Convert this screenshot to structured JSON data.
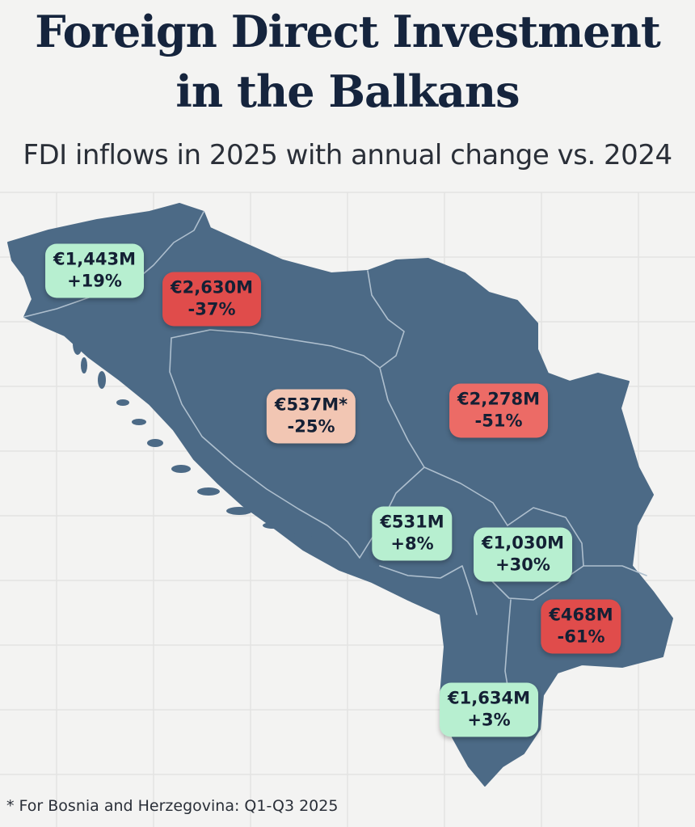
{
  "title": {
    "line1": "Foreign Direct Investment",
    "line2": "in the Balkans"
  },
  "subtitle": "FDI inflows in 2025 with annual change vs. 2024",
  "footnote": "* For Bosnia and Herzegovina: Q1-Q3 2025",
  "colors": {
    "background": "#f3f3f2",
    "map_fill": "#4c6a86",
    "border": "#aebfce",
    "positive": "#b7efd0",
    "mild_negative": "#f2c6b3",
    "negative": "#ec6b66",
    "strong_negative": "#e04c4b",
    "text": "#142034"
  },
  "regions": [
    {
      "id": "slovenia",
      "value": "€1,443M",
      "change": "+19%",
      "trend": "positive"
    },
    {
      "id": "croatia",
      "value": "€2,630M",
      "change": "-37%",
      "trend": "strong_negative"
    },
    {
      "id": "bosnia",
      "value": "€537M*",
      "change": "-25%",
      "trend": "mild_negative"
    },
    {
      "id": "serbia",
      "value": "€2,278M",
      "change": "-51%",
      "trend": "negative"
    },
    {
      "id": "montenegro",
      "value": "€531M",
      "change": "+8%",
      "trend": "positive"
    },
    {
      "id": "kosovo",
      "value": "€1,030M",
      "change": "+30%",
      "trend": "positive"
    },
    {
      "id": "north-macedonia",
      "value": "€468M",
      "change": "-61%",
      "trend": "strong_negative"
    },
    {
      "id": "albania",
      "value": "€1,634M",
      "change": "+3%",
      "trend": "positive"
    }
  ]
}
